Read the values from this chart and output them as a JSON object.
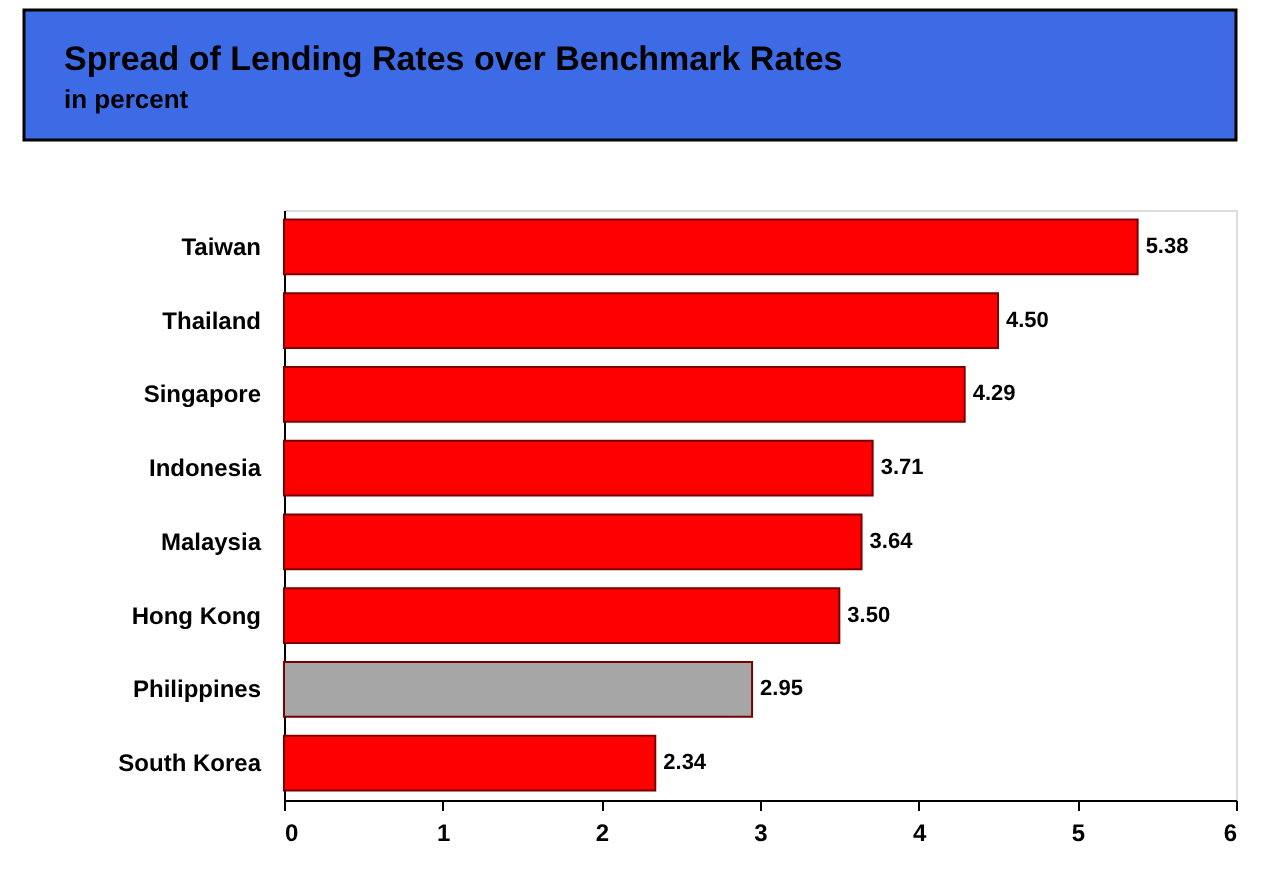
{
  "chart_data": {
    "type": "bar",
    "orientation": "horizontal",
    "title": "Spread of Lending Rates over Benchmark Rates",
    "subtitle": "in percent",
    "categories": [
      "Taiwan",
      "Thailand",
      "Singapore",
      "Indonesia",
      "Malaysia",
      "Hong Kong",
      "Philippines",
      "South Korea"
    ],
    "values": [
      5.38,
      4.5,
      4.29,
      3.71,
      3.64,
      3.5,
      2.95,
      2.34
    ],
    "value_labels": [
      "5.38",
      "4.50",
      "4.29",
      "3.71",
      "3.64",
      "3.50",
      "2.95",
      "2.34"
    ],
    "colors": [
      "#ff0000",
      "#ff0000",
      "#ff0000",
      "#ff0000",
      "#ff0000",
      "#ff0000",
      "#a6a6a6",
      "#ff0000"
    ],
    "xlim": [
      0,
      6
    ],
    "xticks": [
      0,
      1,
      2,
      3,
      4,
      5,
      6
    ],
    "grid": false
  }
}
